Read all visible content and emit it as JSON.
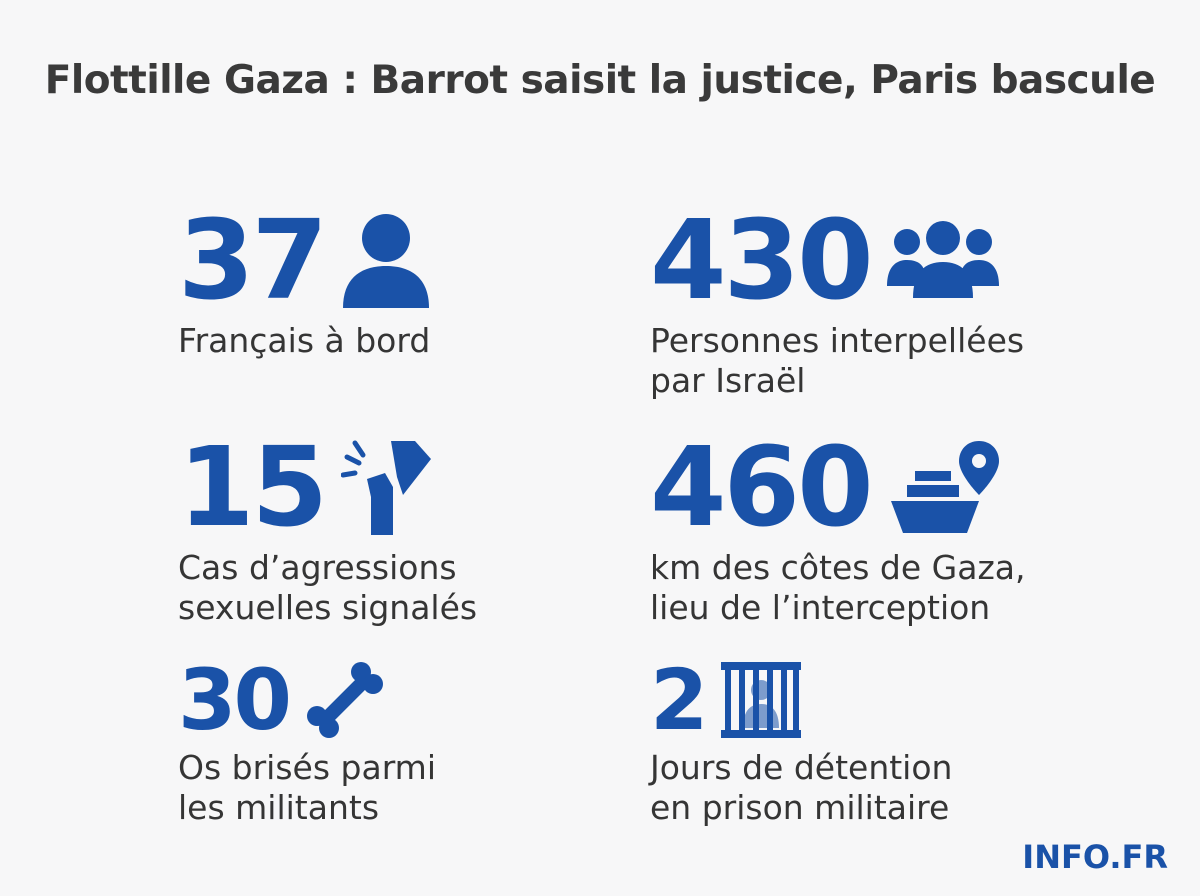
{
  "title": "Flottille Gaza : Barrot saisit la justice, Paris bascule",
  "brand": "INFO.FR",
  "colors": {
    "accent": "#1a52a8",
    "text": "#353535",
    "background": "#f7f7f8"
  },
  "stats": [
    {
      "value": "37",
      "icon": "person-icon",
      "label_lines": [
        "Français à bord"
      ]
    },
    {
      "value": "430",
      "icon": "group-icon",
      "label_lines": [
        "Personnes interpellées",
        "par Israël"
      ]
    },
    {
      "value": "15",
      "icon": "assault-icon",
      "label_lines": [
        "Cas d’agressions",
        "sexuelles signalés"
      ]
    },
    {
      "value": "460",
      "icon": "ship-location-icon",
      "label_lines": [
        "km des côtes de Gaza,",
        "lieu de l’interception"
      ]
    },
    {
      "value": "30",
      "icon": "bone-icon",
      "label_lines": [
        "Os brisés parmi",
        "les militants"
      ]
    },
    {
      "value": "2",
      "icon": "prison-icon",
      "label_lines": [
        "Jours de détention",
        "en prison militaire"
      ]
    }
  ]
}
